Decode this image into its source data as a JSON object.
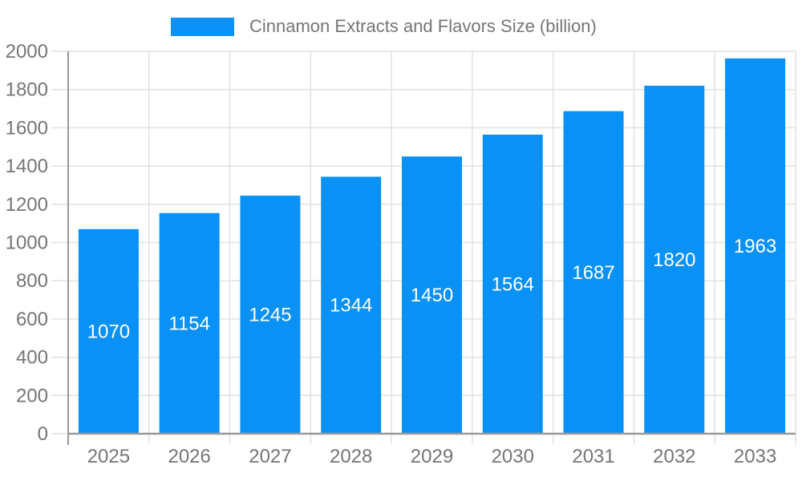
{
  "chart_data": {
    "type": "bar",
    "title": "Cinnamon Extracts and Flavors Size (billion)",
    "categories": [
      "2025",
      "2026",
      "2027",
      "2028",
      "2029",
      "2030",
      "2031",
      "2032",
      "2033"
    ],
    "values": [
      1070,
      1154,
      1245,
      1344,
      1450,
      1564,
      1687,
      1820,
      1963
    ],
    "xlabel": "",
    "ylabel": "",
    "ylim": [
      0,
      2000
    ],
    "ytick_step": 200,
    "yticks": [
      "0",
      "200",
      "400",
      "600",
      "800",
      "1000",
      "1200",
      "1400",
      "1600",
      "1800",
      "2000"
    ],
    "grid": "on",
    "legend_position": "top",
    "bar_labels_visible": true,
    "colors": {
      "bar": "#0991f5",
      "bar_label_text": "#ffffff",
      "grid_line": "#e2e2e2",
      "axis_line": "#999999",
      "tick_label_text": "#757575",
      "legend_text": "#757575",
      "background": "#ffffff"
    }
  }
}
